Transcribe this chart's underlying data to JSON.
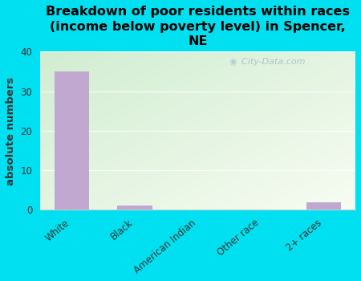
{
  "title": "Breakdown of poor residents within races\n(income below poverty level) in Spencer,\nNE",
  "categories": [
    "White",
    "Black",
    "American Indian",
    "Other race",
    "2+ races"
  ],
  "values": [
    35,
    1,
    0,
    0,
    2
  ],
  "bar_color": "#c0a8d0",
  "ylabel": "absolute numbers",
  "ylim": [
    0,
    40
  ],
  "yticks": [
    0,
    10,
    20,
    30,
    40
  ],
  "background_outer": "#00e0f0",
  "bg_color_top_left": "#d0ecc8",
  "bg_color_bottom_right": "#f5fbf2",
  "watermark": "City-Data.com",
  "title_fontsize": 11.5,
  "ylabel_fontsize": 9.5,
  "tick_fontsize": 8.5
}
